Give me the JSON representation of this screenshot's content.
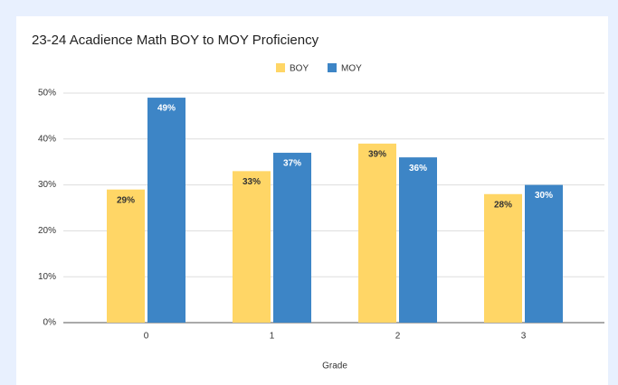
{
  "chart_data": {
    "type": "bar",
    "title": "23-24 Acadience Math BOY to MOY Proficiency",
    "x_label": "Grade",
    "categories": [
      "0",
      "1",
      "2",
      "3"
    ],
    "series": [
      {
        "name": "BOY",
        "color": "#ffd666",
        "values": [
          29,
          33,
          39,
          28
        ],
        "value_labels": [
          "29%",
          "33%",
          "39%",
          "28%"
        ]
      },
      {
        "name": "MOY",
        "color": "#3d85c6",
        "values": [
          49,
          37,
          36,
          30
        ],
        "value_labels": [
          "49%",
          "37%",
          "36%",
          "30%"
        ]
      }
    ],
    "ylim": [
      0,
      50
    ],
    "yticks": [
      {
        "value": 0,
        "label": "0%"
      },
      {
        "value": 10,
        "label": "10%"
      },
      {
        "value": 20,
        "label": "20%"
      },
      {
        "value": 30,
        "label": "30%"
      },
      {
        "value": 40,
        "label": "40%"
      },
      {
        "value": 50,
        "label": "50%"
      }
    ],
    "grid": true,
    "legend": "top"
  }
}
